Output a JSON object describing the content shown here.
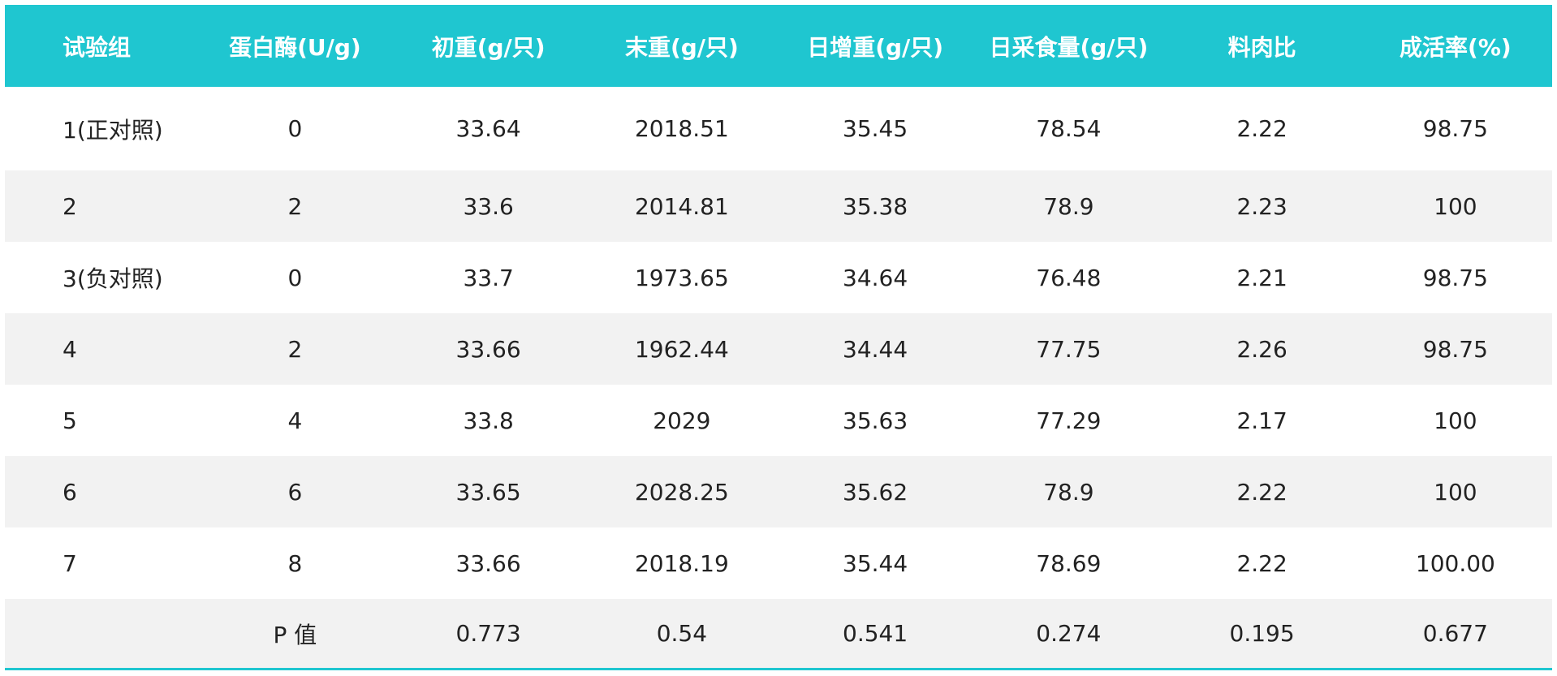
{
  "table": {
    "header": [
      "试验组",
      "蛋白酶(U/g)",
      "初重(g/只)",
      "末重(g/只)",
      "日增重(g/只)",
      "日采食量(g/只)",
      "料肉比",
      "成活率(%)"
    ],
    "rows": [
      [
        "1(正对照)",
        "0",
        "33.64",
        "2018.51",
        "35.45",
        "78.54",
        "2.22",
        "98.75"
      ],
      [
        "2",
        "2",
        "33.6",
        "2014.81",
        "35.38",
        "78.9",
        "2.23",
        "100"
      ],
      [
        "3(负对照)",
        "0",
        "33.7",
        "1973.65",
        "34.64",
        "76.48",
        "2.21",
        "98.75"
      ],
      [
        "4",
        "2",
        "33.66",
        "1962.44",
        "34.44",
        "77.75",
        "2.26",
        "98.75"
      ],
      [
        "5",
        "4",
        "33.8",
        "2029",
        "35.63",
        "77.29",
        "2.17",
        "100"
      ],
      [
        "6",
        "6",
        "33.65",
        "2028.25",
        "35.62",
        "78.9",
        "2.22",
        "100"
      ],
      [
        "7",
        "8",
        "33.66",
        "2018.19",
        "35.44",
        "78.69",
        "2.22",
        "100.00"
      ],
      [
        null,
        "P 值",
        "0.773",
        "0.54",
        "0.541",
        "0.274",
        "0.195",
        "0.677"
      ]
    ]
  }
}
